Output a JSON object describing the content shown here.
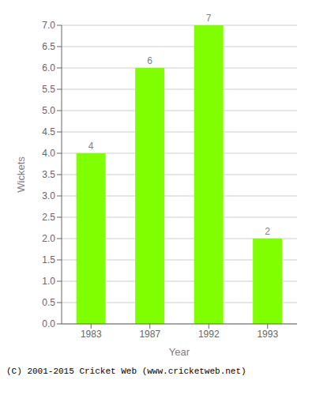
{
  "chart_data": {
    "type": "bar",
    "categories": [
      "1983",
      "1987",
      "1992",
      "1993"
    ],
    "values": [
      4,
      6,
      7,
      2
    ],
    "color": "#7FFF00",
    "xlabel": "Year",
    "ylabel": "Wickets",
    "ylim": [
      0,
      7.0
    ],
    "yticks": [
      {
        "value": 0.0,
        "label": "0.0"
      },
      0.5,
      {
        "value": 1.0,
        "label": "1.0"
      },
      1.5,
      {
        "value": 2.0,
        "label": "2.0"
      },
      2.5,
      {
        "value": 3.0,
        "label": "3.0"
      },
      3.5,
      {
        "value": 4.0,
        "label": "4.0"
      },
      4.5,
      {
        "value": 5.0,
        "label": "5.0"
      },
      5.5,
      {
        "value": 6.0,
        "label": "6.0"
      },
      6.5,
      {
        "value": 7.0,
        "label": "7.0"
      }
    ],
    "grid": true,
    "data_labels": true,
    "annotations": [
      "(C) 2001-2015 Cricket Web (www.cricketweb.net)"
    ]
  }
}
